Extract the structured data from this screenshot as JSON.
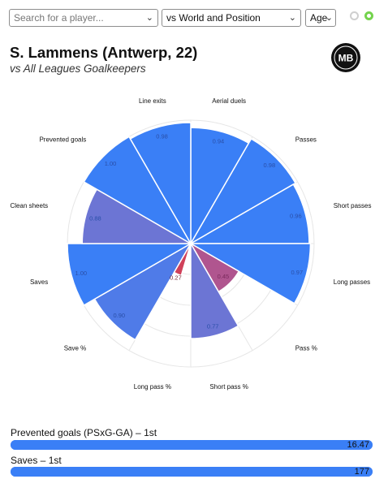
{
  "controls": {
    "search_placeholder": "Search for a player...",
    "comparison_value": "vs World and Position",
    "age_value": "Age"
  },
  "header": {
    "title": "S. Lammens (Antwerp, 22)",
    "subtitle": "vs All Leagues Goalkeepers",
    "logo_text": "MB"
  },
  "colors": {
    "blue": "#3a7ff6",
    "purple": "#6c75d4",
    "magenta": "#b0558f",
    "red": "#d0415a",
    "toggle_green": "#74d34d"
  },
  "chart_data": {
    "type": "polar-bar",
    "range": [
      0,
      1
    ],
    "categories": [
      "Aerial duels",
      "Passes",
      "Short passes",
      "Long passes",
      "Pass %",
      "Short pass %",
      "Long pass %",
      "Save %",
      "Saves",
      "Clean sheets",
      "Prevented goals",
      "Line exits"
    ],
    "values": [
      0.94,
      0.98,
      0.96,
      0.97,
      0.45,
      0.77,
      0.0,
      0.9,
      1.0,
      0.88,
      1.0,
      0.98
    ],
    "value_labels": [
      "0.94",
      "0.98",
      "0.96",
      "0.97",
      "0.45",
      "0.77",
      "",
      "0.90",
      "1.00",
      "0.88",
      "1.00",
      "0.98"
    ],
    "extra_label": "0.27",
    "colors": [
      "#3a7ff6",
      "#3a7ff6",
      "#3a7ff6",
      "#3a7ff6",
      "#b0558f",
      "#6c75d4",
      "#3a7ff6",
      "#4f7be8",
      "#3a7ff6",
      "#6c75d4",
      "#3a7ff6",
      "#3a7ff6"
    ]
  },
  "summary_bars": [
    {
      "label": "Prevented goals (PSxG-GA) – 1st",
      "value": "16.47",
      "fraction": 1.0
    },
    {
      "label": "Saves – 1st",
      "value": "177",
      "fraction": 1.0
    }
  ]
}
